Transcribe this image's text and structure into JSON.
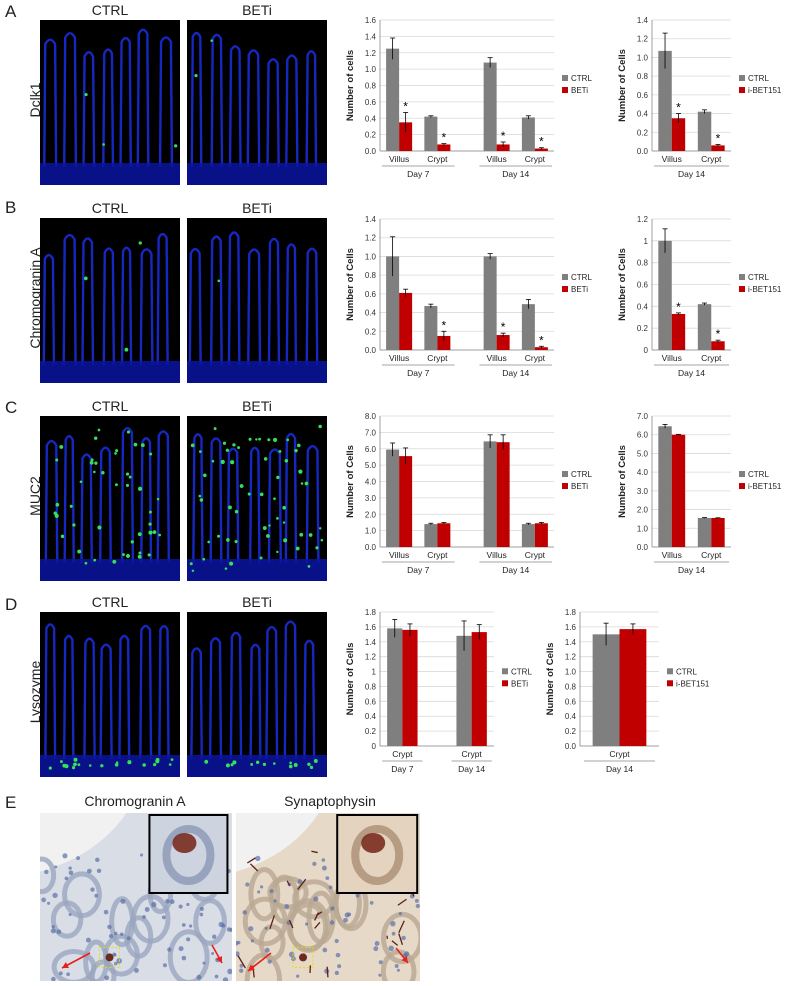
{
  "panels": [
    {
      "letter": "A",
      "row_label": "Dclk1",
      "titles": [
        "CTRL",
        "BETi"
      ]
    },
    {
      "letter": "B",
      "row_label": "Chromogranin A",
      "titles": [
        "CTRL",
        "BETi"
      ]
    },
    {
      "letter": "C",
      "row_label": "MUC2",
      "titles": [
        "CTRL",
        "BETi"
      ]
    },
    {
      "letter": "D",
      "row_label": "Lysozyme",
      "titles": [
        "CTRL",
        "BETi"
      ]
    },
    {
      "letter": "E",
      "ihc_titles": [
        "Chromogranin A",
        "Synaptophysin"
      ]
    }
  ],
  "colors": {
    "ctrl": "#7f7f7f",
    "beti": "#c00000",
    "villus_blue": "#1a2bd6",
    "marker_green": "#36e05a"
  },
  "chart_data": [
    {
      "id": "A1",
      "type": "bar",
      "ylabel": "Number of cells",
      "ylim": [
        0,
        1.6
      ],
      "yticks": [
        "0.0",
        "0.2",
        "0.4",
        "0.6",
        "0.8",
        "1.0",
        "1.2",
        "1.4",
        "1.6"
      ],
      "groups": [
        {
          "label": "Day 7",
          "categories": [
            "Villus",
            "Crypt"
          ]
        },
        {
          "label": "Day 14",
          "categories": [
            "Villus",
            "Crypt"
          ]
        }
      ],
      "series": [
        {
          "name": "CTRL",
          "values": [
            1.25,
            0.42,
            1.08,
            0.41
          ],
          "err": [
            0.13,
            0.01,
            0.06,
            0.02
          ]
        },
        {
          "name": "BETi",
          "values": [
            0.35,
            0.08,
            0.08,
            0.03
          ],
          "err": [
            0.12,
            0.01,
            0.03,
            0.01
          ]
        }
      ],
      "stars": [
        [
          1,
          0
        ],
        [
          1,
          1
        ],
        [
          1,
          2
        ],
        [
          1,
          3
        ]
      ],
      "legend_position": "right"
    },
    {
      "id": "A2",
      "type": "bar",
      "ylabel": "Number of Cells",
      "ylim": [
        0,
        1.4
      ],
      "yticks": [
        "0.0",
        "0.2",
        "0.4",
        "0.6",
        "0.8",
        "1.0",
        "1.2",
        "1.4"
      ],
      "groups": [
        {
          "label": "Day 14",
          "categories": [
            "Villus",
            "Crypt"
          ]
        }
      ],
      "series": [
        {
          "name": "CTRL",
          "values": [
            1.07,
            0.42
          ],
          "err": [
            0.19,
            0.02
          ]
        },
        {
          "name": "i-BET151",
          "values": [
            0.35,
            0.06
          ],
          "err": [
            0.05,
            0.01
          ]
        }
      ],
      "stars": [
        [
          1,
          0
        ],
        [
          1,
          1
        ]
      ],
      "legend_position": "right"
    },
    {
      "id": "B1",
      "type": "bar",
      "ylabel": "Number of Cells",
      "ylim": [
        0,
        1.4
      ],
      "yticks": [
        "0.0",
        "0.2",
        "0.4",
        "0.6",
        "0.8",
        "1.0",
        "1.2",
        "1.4"
      ],
      "groups": [
        {
          "label": "Day 7",
          "categories": [
            "Villus",
            "Crypt"
          ]
        },
        {
          "label": "Day 14",
          "categories": [
            "Villus",
            "Crypt"
          ]
        }
      ],
      "series": [
        {
          "name": "CTRL",
          "values": [
            1.0,
            0.47,
            1.0,
            0.49
          ],
          "err": [
            0.21,
            0.02,
            0.03,
            0.05
          ]
        },
        {
          "name": "BETi",
          "values": [
            0.61,
            0.15,
            0.16,
            0.03
          ],
          "err": [
            0.04,
            0.05,
            0.02,
            0.01
          ]
        }
      ],
      "stars": [
        [
          1,
          1
        ],
        [
          1,
          2
        ],
        [
          1,
          3
        ]
      ],
      "legend_position": "right"
    },
    {
      "id": "B2",
      "type": "bar",
      "ylabel": "Number of Cells",
      "ylim": [
        0,
        1.2
      ],
      "yticks": [
        "0",
        "0.2",
        "0.4",
        "0.6",
        "0.8",
        "1",
        "1.2"
      ],
      "groups": [
        {
          "label": "Day 14",
          "categories": [
            "Villus",
            "Crypt"
          ]
        }
      ],
      "series": [
        {
          "name": "CTRL",
          "values": [
            1.0,
            0.42
          ],
          "err": [
            0.11,
            0.01
          ]
        },
        {
          "name": "i-BET151",
          "values": [
            0.33,
            0.08
          ],
          "err": [
            0.01,
            0.01
          ]
        }
      ],
      "stars": [
        [
          1,
          0
        ],
        [
          1,
          1
        ]
      ],
      "legend_position": "right"
    },
    {
      "id": "C1",
      "type": "bar",
      "ylabel": "Number of Cells",
      "ylim": [
        0,
        8.0
      ],
      "yticks": [
        "0.0",
        "1.0",
        "2.0",
        "3.0",
        "4.0",
        "5.0",
        "6.0",
        "7.0",
        "8.0"
      ],
      "groups": [
        {
          "label": "Day 7",
          "categories": [
            "Villus",
            "Crypt"
          ]
        },
        {
          "label": "Day 14",
          "categories": [
            "Villus",
            "Crypt"
          ]
        }
      ],
      "series": [
        {
          "name": "CTRL",
          "values": [
            5.95,
            1.4,
            6.45,
            1.4
          ],
          "err": [
            0.4,
            0.05,
            0.4,
            0.05
          ]
        },
        {
          "name": "BETi",
          "values": [
            5.55,
            1.45,
            6.4,
            1.45
          ],
          "err": [
            0.5,
            0.05,
            0.45,
            0.05
          ]
        }
      ],
      "stars": [],
      "legend_position": "right"
    },
    {
      "id": "C2",
      "type": "bar",
      "ylabel": "Number of Cells",
      "ylim": [
        0,
        7.0
      ],
      "yticks": [
        "0.0",
        "1.0",
        "2.0",
        "3.0",
        "4.0",
        "5.0",
        "6.0",
        "7.0"
      ],
      "groups": [
        {
          "label": "Day 14",
          "categories": [
            "Villus",
            "Crypt"
          ]
        }
      ],
      "series": [
        {
          "name": "CTRL",
          "values": [
            6.45,
            1.55
          ],
          "err": [
            0.1,
            0.02
          ]
        },
        {
          "name": "i-BET151",
          "values": [
            6.0,
            1.55
          ],
          "err": [
            0.02,
            0.01
          ]
        }
      ],
      "stars": [],
      "legend_position": "right"
    },
    {
      "id": "D1",
      "type": "bar",
      "ylabel": "Number of Cells",
      "ylim": [
        0,
        1.8
      ],
      "yticks": [
        "0",
        "0.2",
        "0.4",
        "0.6",
        "0.8",
        "1",
        "1.2",
        "1.4",
        "1.6",
        "1.8"
      ],
      "groups": [
        {
          "label": "Day 7",
          "categories": [
            "Crypt"
          ]
        },
        {
          "label": "Day 14",
          "categories": [
            "Crypt"
          ]
        }
      ],
      "series": [
        {
          "name": "CTRL",
          "values": [
            1.58,
            1.48
          ],
          "err": [
            0.12,
            0.2
          ]
        },
        {
          "name": "BETi",
          "values": [
            1.56,
            1.53
          ],
          "err": [
            0.08,
            0.1
          ]
        }
      ],
      "stars": [],
      "legend_position": "right"
    },
    {
      "id": "D2",
      "type": "bar",
      "ylabel": "Number of Cells",
      "ylim": [
        0,
        1.8
      ],
      "yticks": [
        "0.0",
        "0.2",
        "0.4",
        "0.6",
        "0.8",
        "1.0",
        "1.2",
        "1.4",
        "1.6",
        "1.8"
      ],
      "groups": [
        {
          "label": "Day 14",
          "categories": [
            "Crypt"
          ]
        }
      ],
      "series": [
        {
          "name": "CTRL",
          "values": [
            1.5
          ],
          "err": [
            0.15
          ]
        },
        {
          "name": "i-BET151",
          "values": [
            1.57
          ],
          "err": [
            0.07
          ]
        }
      ],
      "stars": [],
      "legend_position": "right"
    }
  ]
}
